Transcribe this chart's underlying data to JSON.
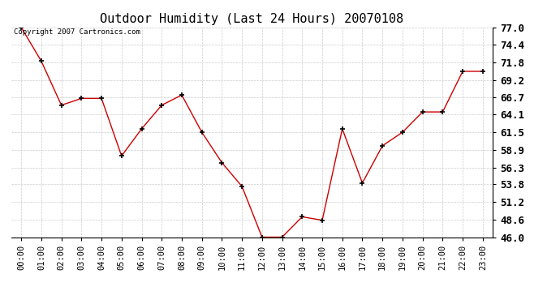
{
  "title": "Outdoor Humidity (Last 24 Hours) 20070108",
  "copyright_text": "Copyright 2007 Cartronics.com",
  "hours": [
    0,
    1,
    2,
    3,
    4,
    5,
    6,
    7,
    8,
    9,
    10,
    11,
    12,
    13,
    14,
    15,
    16,
    17,
    18,
    19,
    20,
    21,
    22,
    23
  ],
  "x_labels": [
    "00:00",
    "01:00",
    "02:00",
    "03:00",
    "04:00",
    "05:00",
    "06:00",
    "07:00",
    "08:00",
    "09:00",
    "10:00",
    "11:00",
    "12:00",
    "13:00",
    "14:00",
    "15:00",
    "16:00",
    "17:00",
    "18:00",
    "19:00",
    "20:00",
    "21:00",
    "22:00",
    "23:00"
  ],
  "humidity": [
    77.0,
    72.0,
    65.5,
    66.5,
    66.5,
    58.0,
    62.0,
    65.5,
    67.0,
    61.5,
    57.0,
    53.5,
    46.0,
    46.0,
    49.0,
    48.5,
    62.0,
    54.0,
    59.5,
    61.5,
    64.5,
    64.5,
    70.5,
    70.5
  ],
  "line_color": "#cc0000",
  "marker": "+",
  "marker_color": "#000000",
  "marker_size": 5,
  "background_color": "#ffffff",
  "plot_bg_color": "#ffffff",
  "grid_color": "#cccccc",
  "ylim": [
    46.0,
    77.0
  ],
  "yticks": [
    46.0,
    48.6,
    51.2,
    53.8,
    56.3,
    58.9,
    61.5,
    64.1,
    66.7,
    69.2,
    71.8,
    74.4,
    77.0
  ],
  "title_fontsize": 11,
  "tick_fontsize": 7.5,
  "ytick_fontsize": 9,
  "copyright_fontsize": 6.5
}
